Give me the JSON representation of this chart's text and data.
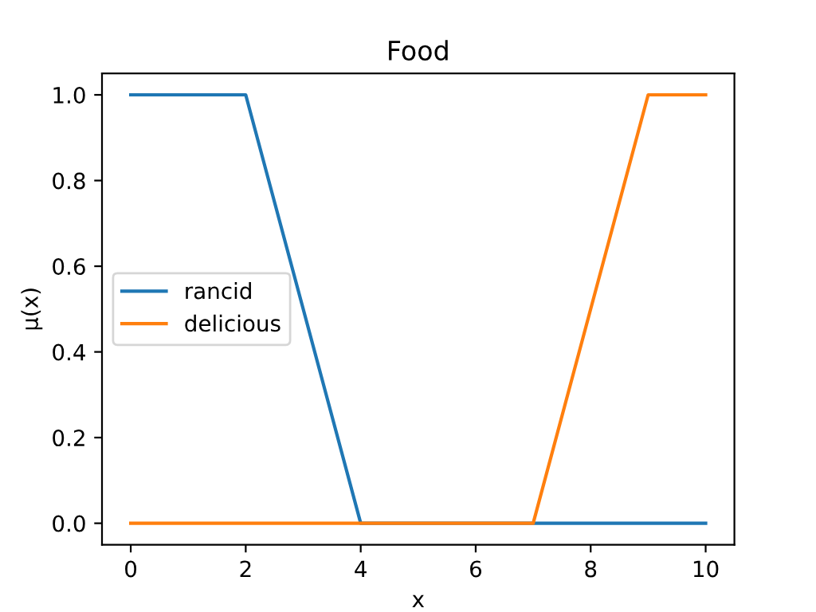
{
  "chart_data": {
    "type": "line",
    "title": "Food",
    "xlabel": "x",
    "ylabel": "μ(x)",
    "series": [
      {
        "name": "rancid",
        "color": "#1f77b4",
        "x": [
          0,
          2,
          4,
          10
        ],
        "values": [
          1,
          1,
          0,
          0
        ]
      },
      {
        "name": "delicious",
        "color": "#ff7f0e",
        "x": [
          0,
          7,
          9,
          10
        ],
        "values": [
          0,
          0,
          1,
          1
        ]
      }
    ],
    "xlim": [
      -0.5,
      10.5
    ],
    "xticks": [
      0,
      2,
      4,
      6,
      8,
      10
    ],
    "ylim": [
      -0.05,
      1.05
    ],
    "yticks": [
      {
        "value": 0,
        "label": "0.0"
      },
      {
        "value": 0.2,
        "label": "0.2"
      },
      {
        "value": 0.4,
        "label": "0.4"
      },
      {
        "value": 0.6,
        "label": "0.6"
      },
      {
        "value": 0.8,
        "label": "0.8"
      },
      {
        "value": 1,
        "label": "1.0"
      }
    ],
    "legend": "center left",
    "grid": false
  }
}
